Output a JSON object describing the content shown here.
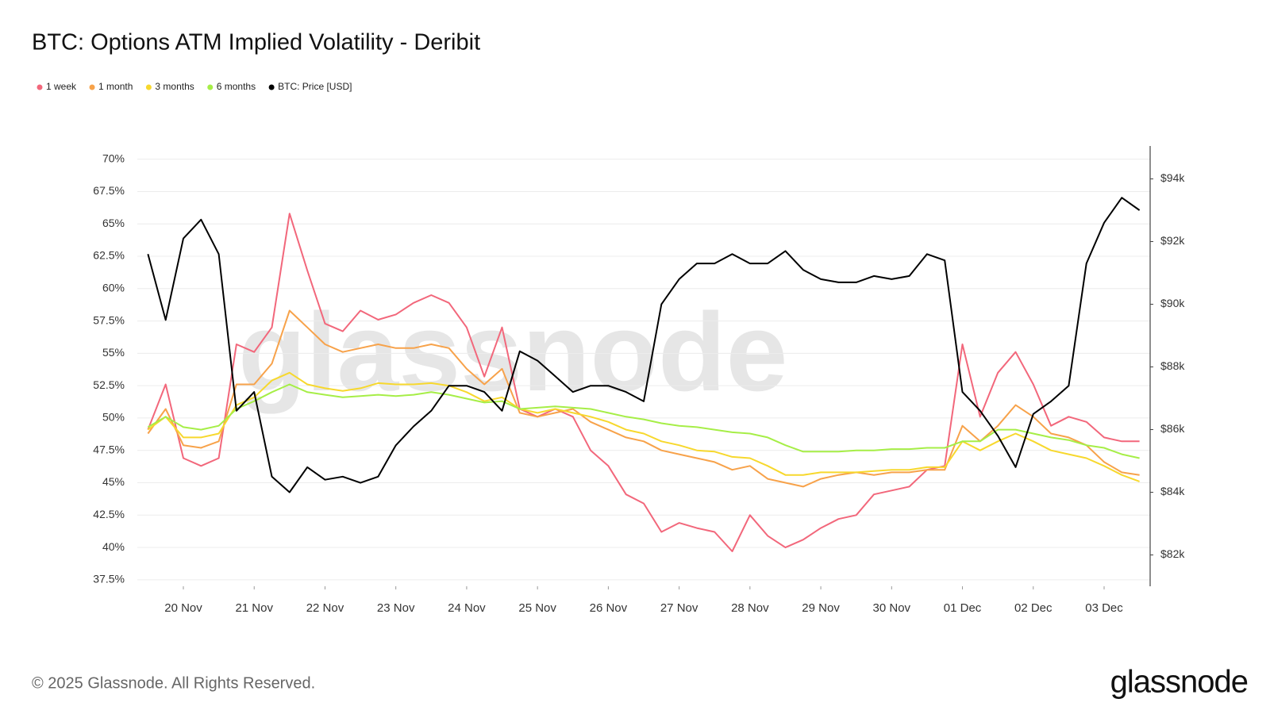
{
  "chart_data": {
    "type": "line",
    "title": "BTC: Options ATM Implied Volatility - Deribit",
    "categories": [
      null,
      null,
      "20 Nov",
      null,
      null,
      null,
      "21 Nov",
      null,
      null,
      null,
      "22 Nov",
      null,
      null,
      null,
      "23 Nov",
      null,
      null,
      null,
      "24 Nov",
      null,
      null,
      null,
      "25 Nov",
      null,
      null,
      null,
      "26 Nov",
      null,
      null,
      null,
      "27 Nov",
      null,
      null,
      null,
      "28 Nov",
      null,
      null,
      null,
      "29 Nov",
      null,
      null,
      null,
      "30 Nov",
      null,
      null,
      null,
      "01 Dec",
      null,
      null,
      null,
      "02 Dec",
      null,
      null,
      null,
      "03 Dec",
      null,
      null
    ],
    "series": [
      {
        "name": "1 week",
        "color": "#f2677b",
        "values": [
          49.1,
          52.6,
          46.9,
          46.3,
          46.9,
          55.7,
          55.1,
          57.0,
          65.8,
          61.4,
          57.3,
          56.7,
          58.3,
          57.6,
          58.0,
          58.9,
          59.5,
          58.9,
          57.0,
          53.2,
          57.0,
          50.7,
          50.1,
          50.7,
          50.1,
          47.5,
          46.3,
          44.1,
          43.4,
          41.2,
          41.9,
          41.5,
          41.2,
          39.7,
          42.5,
          40.9,
          40.0,
          40.6,
          41.5,
          42.2,
          42.5,
          44.1,
          44.4,
          44.7,
          46.0,
          46.3,
          55.7,
          50.1,
          53.5,
          55.1,
          52.6,
          49.4,
          50.1,
          49.7,
          48.5,
          48.2,
          48.2
        ]
      },
      {
        "name": "1 month",
        "color": "#f7a24a",
        "values": [
          48.8,
          50.7,
          47.9,
          47.7,
          48.2,
          52.6,
          52.6,
          54.2,
          58.3,
          57.0,
          55.7,
          55.1,
          55.4,
          55.7,
          55.4,
          55.4,
          55.7,
          55.4,
          53.8,
          52.6,
          53.8,
          50.4,
          50.1,
          50.4,
          50.7,
          49.7,
          49.1,
          48.5,
          48.2,
          47.5,
          47.2,
          46.9,
          46.6,
          46.0,
          46.3,
          45.3,
          45.0,
          44.7,
          45.3,
          45.6,
          45.8,
          45.6,
          45.8,
          45.8,
          46.0,
          46.0,
          49.4,
          48.2,
          49.4,
          51.0,
          50.1,
          48.8,
          48.5,
          47.9,
          46.6,
          45.8,
          45.6
        ]
      },
      {
        "name": "3 months",
        "color": "#f7d82d",
        "values": [
          49.1,
          50.1,
          48.5,
          48.5,
          48.8,
          51.0,
          51.6,
          52.9,
          53.5,
          52.6,
          52.3,
          52.1,
          52.3,
          52.7,
          52.6,
          52.6,
          52.7,
          52.5,
          52.0,
          51.3,
          51.6,
          50.7,
          50.4,
          50.7,
          50.4,
          50.1,
          49.7,
          49.1,
          48.8,
          48.2,
          47.9,
          47.5,
          47.4,
          47.0,
          46.9,
          46.3,
          45.6,
          45.6,
          45.8,
          45.8,
          45.8,
          45.9,
          46.0,
          46.0,
          46.2,
          46.2,
          48.2,
          47.5,
          48.2,
          48.8,
          48.2,
          47.5,
          47.2,
          46.9,
          46.3,
          45.6,
          45.1
        ]
      },
      {
        "name": "6 months",
        "color": "#a6ee47",
        "values": [
          49.3,
          50.1,
          49.3,
          49.1,
          49.4,
          50.7,
          51.3,
          52.0,
          52.6,
          52.0,
          51.8,
          51.6,
          51.7,
          51.8,
          51.7,
          51.8,
          52.0,
          51.8,
          51.5,
          51.2,
          51.3,
          50.7,
          50.8,
          50.9,
          50.8,
          50.7,
          50.4,
          50.1,
          49.9,
          49.6,
          49.4,
          49.3,
          49.1,
          48.9,
          48.8,
          48.5,
          47.9,
          47.4,
          47.4,
          47.4,
          47.5,
          47.5,
          47.6,
          47.6,
          47.7,
          47.7,
          48.2,
          48.2,
          49.1,
          49.1,
          48.8,
          48.5,
          48.3,
          47.9,
          47.7,
          47.2,
          46.9
        ]
      },
      {
        "name": "BTC: Price [USD]",
        "color": "#000000",
        "axis": "y2",
        "values": [
          91600,
          89500,
          92100,
          92700,
          91600,
          86600,
          87200,
          84500,
          84000,
          84800,
          84400,
          84500,
          84300,
          84500,
          85500,
          86100,
          86600,
          87400,
          87400,
          87200,
          86600,
          88500,
          88200,
          87700,
          87200,
          87400,
          87400,
          87200,
          86900,
          90000,
          90800,
          91300,
          91300,
          91600,
          91300,
          91300,
          91700,
          91100,
          90800,
          90700,
          90700,
          90900,
          90800,
          90900,
          91600,
          91400,
          87200,
          86600,
          85800,
          84800,
          86500,
          86900,
          87400,
          91300,
          92600,
          93400,
          93000
        ]
      }
    ],
    "ylim": [
      37,
      70.9
    ],
    "yticks": [
      {
        "value": 37.5,
        "label": "37.5%"
      },
      {
        "value": 40,
        "label": "40%"
      },
      {
        "value": 42.5,
        "label": "42.5%"
      },
      {
        "value": 45,
        "label": "45%"
      },
      {
        "value": 47.5,
        "label": "47.5%"
      },
      {
        "value": 50,
        "label": "50%"
      },
      {
        "value": 52.5,
        "label": "52.5%"
      },
      {
        "value": 55,
        "label": "55%"
      },
      {
        "value": 57.5,
        "label": "57.5%"
      },
      {
        "value": 60,
        "label": "60%"
      },
      {
        "value": 62.5,
        "label": "62.5%"
      },
      {
        "value": 65,
        "label": "65%"
      },
      {
        "value": 67.5,
        "label": "67.5%"
      },
      {
        "value": 70,
        "label": "70%"
      }
    ],
    "y2lim": [
      81000,
      95000
    ],
    "y2ticks": [
      {
        "value": 82000,
        "label": "$82k"
      },
      {
        "value": 84000,
        "label": "$84k"
      },
      {
        "value": 86000,
        "label": "$86k"
      },
      {
        "value": 88000,
        "label": "$88k"
      },
      {
        "value": 90000,
        "label": "$90k"
      },
      {
        "value": 92000,
        "label": "$92k"
      },
      {
        "value": 94000,
        "label": "$94k"
      }
    ],
    "grid": true,
    "legend": "top-left"
  },
  "watermark": "glassnode",
  "footer": {
    "copyright": "© 2025 Glassnode. All Rights Reserved.",
    "logo": "glassnode"
  }
}
